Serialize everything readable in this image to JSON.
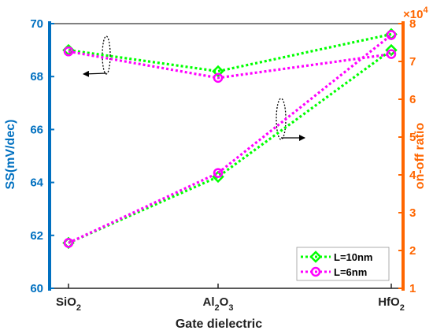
{
  "chart_data": {
    "type": "line",
    "x_label": "Gate dielectric",
    "categories": [
      {
        "base": "SiO",
        "sub": "2",
        "base2": "",
        "sub2": ""
      },
      {
        "base": "Al",
        "sub": "2",
        "base2": "O",
        "sub2": "3"
      },
      {
        "base": "HfO",
        "sub": "2",
        "base2": "",
        "sub2": ""
      }
    ],
    "left_axis": {
      "label": "SS(mV/dec)",
      "color": "#0070C0",
      "ylim": [
        60,
        70
      ],
      "ticks": [
        "60",
        "62",
        "64",
        "66",
        "68",
        "70"
      ]
    },
    "right_axis": {
      "label": "on-off ratio",
      "color": "#FF6600",
      "multiplier_base": "×10",
      "multiplier_exp": "4",
      "ylim": [
        1,
        8
      ],
      "ticks": [
        "1",
        "2",
        "3",
        "4",
        "5",
        "6",
        "7",
        "8"
      ]
    },
    "series": [
      {
        "name": "L=10nm",
        "color": "#00FF00",
        "marker": "diamond",
        "ss": [
          69.0,
          68.2,
          69.6
        ],
        "on_off_ratio": [
          2.2,
          3.95,
          7.3
        ]
      },
      {
        "name": "L=6nm",
        "color": "#FF00FF",
        "marker": "circle",
        "ss": [
          68.95,
          67.95,
          68.85
        ],
        "on_off_ratio": [
          2.2,
          4.05,
          7.7
        ]
      }
    ],
    "legend": {
      "position": "bottom-right"
    },
    "grid": false
  }
}
